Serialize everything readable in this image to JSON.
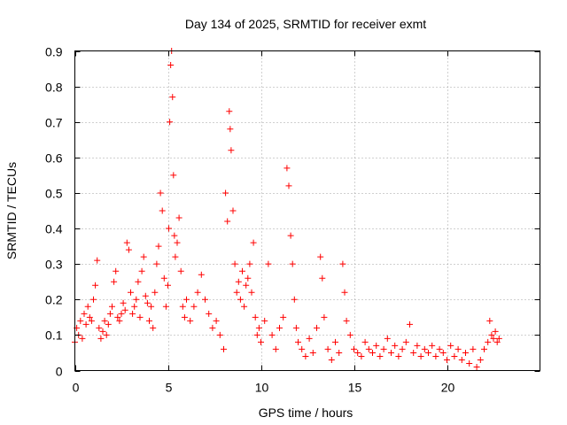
{
  "chart_data": {
    "type": "scatter",
    "title": "Day 134 of 2025, SRMTID for receiver exmt",
    "xlabel": "GPS time / hours",
    "ylabel": "SRMTID / TECUs",
    "xlim": [
      0,
      25
    ],
    "ylim": [
      0,
      0.9
    ],
    "xticks": [
      0,
      5,
      10,
      15,
      20
    ],
    "yticks": [
      0,
      0.1,
      0.2,
      0.3,
      0.4,
      0.5,
      0.6,
      0.7,
      0.8,
      0.9
    ],
    "xtick_labels": [
      "0",
      "5",
      "10",
      "15",
      "20"
    ],
    "ytick_labels": [
      "0",
      "0.1",
      "0.2",
      "0.3",
      "0.4",
      "0.5",
      "0.6",
      "0.7",
      "0.8",
      "0.9"
    ],
    "grid": true,
    "marker": "+",
    "color": "#ff0000",
    "series": [
      {
        "name": "SRMTID",
        "points": [
          [
            0.0,
            0.08
          ],
          [
            0.1,
            0.12
          ],
          [
            0.2,
            0.1
          ],
          [
            0.3,
            0.14
          ],
          [
            0.4,
            0.09
          ],
          [
            0.5,
            0.16
          ],
          [
            0.6,
            0.13
          ],
          [
            0.7,
            0.18
          ],
          [
            0.8,
            0.15
          ],
          [
            0.9,
            0.14
          ],
          [
            1.0,
            0.2
          ],
          [
            1.1,
            0.24
          ],
          [
            1.2,
            0.31
          ],
          [
            1.3,
            0.12
          ],
          [
            1.4,
            0.09
          ],
          [
            1.5,
            0.11
          ],
          [
            1.6,
            0.14
          ],
          [
            1.7,
            0.1
          ],
          [
            1.8,
            0.13
          ],
          [
            1.9,
            0.16
          ],
          [
            2.0,
            0.18
          ],
          [
            2.1,
            0.25
          ],
          [
            2.2,
            0.28
          ],
          [
            2.3,
            0.15
          ],
          [
            2.4,
            0.14
          ],
          [
            2.5,
            0.16
          ],
          [
            2.6,
            0.19
          ],
          [
            2.7,
            0.17
          ],
          [
            2.8,
            0.36
          ],
          [
            2.9,
            0.34
          ],
          [
            3.0,
            0.22
          ],
          [
            3.1,
            0.16
          ],
          [
            3.2,
            0.18
          ],
          [
            3.3,
            0.2
          ],
          [
            3.4,
            0.25
          ],
          [
            3.5,
            0.15
          ],
          [
            3.6,
            0.28
          ],
          [
            3.7,
            0.32
          ],
          [
            3.8,
            0.21
          ],
          [
            3.9,
            0.19
          ],
          [
            4.0,
            0.14
          ],
          [
            4.1,
            0.18
          ],
          [
            4.2,
            0.12
          ],
          [
            4.3,
            0.22
          ],
          [
            4.4,
            0.3
          ],
          [
            4.5,
            0.35
          ],
          [
            4.6,
            0.5
          ],
          [
            4.7,
            0.45
          ],
          [
            4.8,
            0.26
          ],
          [
            4.9,
            0.18
          ],
          [
            5.0,
            0.24
          ],
          [
            5.05,
            0.4
          ],
          [
            5.1,
            0.7
          ],
          [
            5.15,
            0.86
          ],
          [
            5.2,
            0.9
          ],
          [
            5.25,
            0.77
          ],
          [
            5.3,
            0.55
          ],
          [
            5.35,
            0.38
          ],
          [
            5.4,
            0.32
          ],
          [
            5.5,
            0.36
          ],
          [
            5.6,
            0.43
          ],
          [
            5.7,
            0.28
          ],
          [
            5.8,
            0.18
          ],
          [
            5.9,
            0.15
          ],
          [
            6.0,
            0.2
          ],
          [
            6.2,
            0.14
          ],
          [
            6.4,
            0.18
          ],
          [
            6.6,
            0.22
          ],
          [
            6.8,
            0.27
          ],
          [
            7.0,
            0.2
          ],
          [
            7.2,
            0.16
          ],
          [
            7.4,
            0.12
          ],
          [
            7.6,
            0.14
          ],
          [
            7.8,
            0.1
          ],
          [
            8.0,
            0.06
          ],
          [
            8.1,
            0.5
          ],
          [
            8.2,
            0.42
          ],
          [
            8.3,
            0.73
          ],
          [
            8.35,
            0.68
          ],
          [
            8.4,
            0.62
          ],
          [
            8.5,
            0.45
          ],
          [
            8.6,
            0.3
          ],
          [
            8.7,
            0.22
          ],
          [
            8.8,
            0.25
          ],
          [
            8.9,
            0.2
          ],
          [
            9.0,
            0.28
          ],
          [
            9.1,
            0.18
          ],
          [
            9.2,
            0.24
          ],
          [
            9.3,
            0.26
          ],
          [
            9.4,
            0.3
          ],
          [
            9.5,
            0.22
          ],
          [
            9.6,
            0.36
          ],
          [
            9.7,
            0.15
          ],
          [
            9.8,
            0.1
          ],
          [
            9.9,
            0.12
          ],
          [
            10.0,
            0.08
          ],
          [
            10.2,
            0.14
          ],
          [
            10.4,
            0.3
          ],
          [
            10.6,
            0.1
          ],
          [
            10.8,
            0.06
          ],
          [
            11.0,
            0.12
          ],
          [
            11.2,
            0.15
          ],
          [
            11.4,
            0.57
          ],
          [
            11.5,
            0.52
          ],
          [
            11.6,
            0.38
          ],
          [
            11.7,
            0.3
          ],
          [
            11.8,
            0.2
          ],
          [
            11.9,
            0.12
          ],
          [
            12.0,
            0.08
          ],
          [
            12.2,
            0.06
          ],
          [
            12.4,
            0.04
          ],
          [
            12.6,
            0.09
          ],
          [
            12.8,
            0.05
          ],
          [
            13.0,
            0.12
          ],
          [
            13.2,
            0.32
          ],
          [
            13.3,
            0.26
          ],
          [
            13.4,
            0.15
          ],
          [
            13.6,
            0.06
          ],
          [
            13.8,
            0.03
          ],
          [
            14.0,
            0.08
          ],
          [
            14.2,
            0.05
          ],
          [
            14.4,
            0.3
          ],
          [
            14.5,
            0.22
          ],
          [
            14.6,
            0.14
          ],
          [
            14.8,
            0.1
          ],
          [
            15.0,
            0.06
          ],
          [
            15.2,
            0.05
          ],
          [
            15.4,
            0.04
          ],
          [
            15.6,
            0.08
          ],
          [
            15.8,
            0.06
          ],
          [
            16.0,
            0.05
          ],
          [
            16.2,
            0.07
          ],
          [
            16.4,
            0.04
          ],
          [
            16.6,
            0.06
          ],
          [
            16.8,
            0.09
          ],
          [
            17.0,
            0.05
          ],
          [
            17.2,
            0.07
          ],
          [
            17.4,
            0.04
          ],
          [
            17.6,
            0.06
          ],
          [
            17.8,
            0.08
          ],
          [
            18.0,
            0.13
          ],
          [
            18.2,
            0.05
          ],
          [
            18.4,
            0.07
          ],
          [
            18.6,
            0.04
          ],
          [
            18.8,
            0.06
          ],
          [
            19.0,
            0.05
          ],
          [
            19.2,
            0.07
          ],
          [
            19.4,
            0.04
          ],
          [
            19.6,
            0.06
          ],
          [
            19.8,
            0.05
          ],
          [
            20.0,
            0.03
          ],
          [
            20.2,
            0.07
          ],
          [
            20.4,
            0.04
          ],
          [
            20.6,
            0.06
          ],
          [
            20.8,
            0.03
          ],
          [
            21.0,
            0.05
          ],
          [
            21.2,
            0.02
          ],
          [
            21.4,
            0.06
          ],
          [
            21.6,
            0.01
          ],
          [
            21.8,
            0.03
          ],
          [
            22.0,
            0.06
          ],
          [
            22.2,
            0.08
          ],
          [
            22.3,
            0.14
          ],
          [
            22.4,
            0.1
          ],
          [
            22.5,
            0.09
          ],
          [
            22.6,
            0.11
          ],
          [
            22.7,
            0.08
          ],
          [
            22.8,
            0.09
          ]
        ]
      }
    ]
  }
}
